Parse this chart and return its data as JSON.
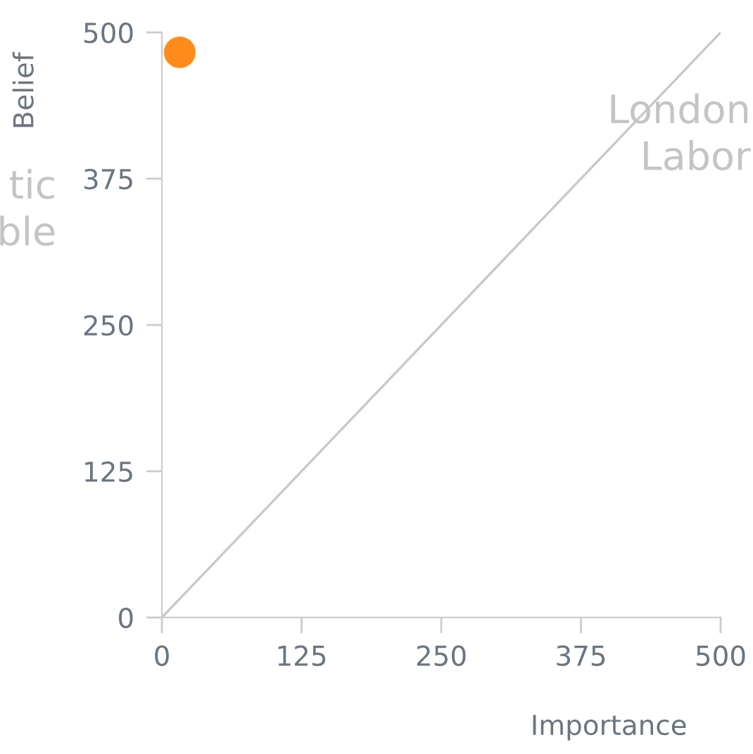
{
  "chart_data": {
    "type": "scatter",
    "xlabel": "Importance",
    "ylabel": "Belief",
    "xlim": [
      0,
      500
    ],
    "ylim": [
      0,
      500
    ],
    "xticks": [
      0,
      125,
      250,
      375,
      500
    ],
    "yticks": [
      0,
      125,
      250,
      375,
      500
    ],
    "grid": false,
    "legend": false,
    "series": [
      {
        "color": "#ff8c1a",
        "marker": "circle",
        "x": [
          16
        ],
        "values": [
          483
        ]
      },
      {
        "type": "line",
        "color": "#c8c8c8",
        "x": [
          0,
          500
        ],
        "values": [
          0,
          500
        ]
      }
    ],
    "annotations": [
      "tic\nble",
      "London\nLabor"
    ]
  }
}
